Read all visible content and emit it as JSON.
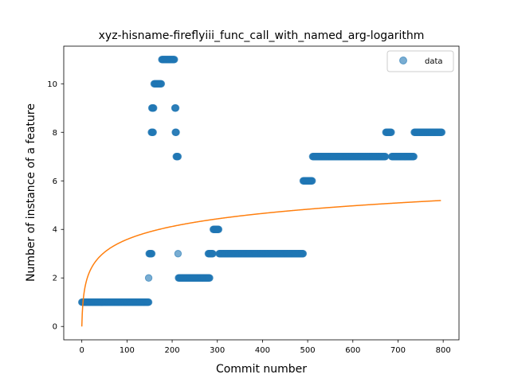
{
  "chart_data": {
    "type": "scatter",
    "title": "xyz-hisname-fireflyiii_func_call_with_named_arg-logarithm",
    "xlabel": "Commit number",
    "ylabel": "Number of instance of a feature",
    "xlim": [
      -40,
      835
    ],
    "ylim": [
      -0.55,
      11.55
    ],
    "xticks": [
      0,
      100,
      200,
      300,
      400,
      500,
      600,
      700,
      800
    ],
    "yticks": [
      0,
      2,
      4,
      6,
      8,
      10
    ],
    "legend": {
      "position": "top-right",
      "entries": [
        "data"
      ]
    },
    "colors": {
      "data": "#1f77b4",
      "fit": "#ff7f0e"
    },
    "series": [
      {
        "name": "data",
        "kind": "scatter",
        "segments": [
          {
            "x_start": 0,
            "x_end": 148,
            "y": 1
          },
          {
            "x_start": 148,
            "x_end": 148,
            "y": 2
          },
          {
            "x_start": 149,
            "x_end": 155,
            "y": 3
          },
          {
            "x_start": 154,
            "x_end": 158,
            "y": 8
          },
          {
            "x_start": 155,
            "x_end": 159,
            "y": 9
          },
          {
            "x_start": 160,
            "x_end": 176,
            "y": 10
          },
          {
            "x_start": 177,
            "x_end": 205,
            "y": 11
          },
          {
            "x_start": 206,
            "x_end": 208,
            "y": 9
          },
          {
            "x_start": 207,
            "x_end": 209,
            "y": 8
          },
          {
            "x_start": 209,
            "x_end": 213,
            "y": 7
          },
          {
            "x_start": 213,
            "x_end": 213,
            "y": 3
          },
          {
            "x_start": 214,
            "x_end": 283,
            "y": 2
          },
          {
            "x_start": 280,
            "x_end": 290,
            "y": 3
          },
          {
            "x_start": 291,
            "x_end": 303,
            "y": 4
          },
          {
            "x_start": 304,
            "x_end": 490,
            "y": 3
          },
          {
            "x_start": 490,
            "x_end": 510,
            "y": 6
          },
          {
            "x_start": 511,
            "x_end": 672,
            "y": 7
          },
          {
            "x_start": 673,
            "x_end": 685,
            "y": 8
          },
          {
            "x_start": 686,
            "x_end": 735,
            "y": 7
          },
          {
            "x_start": 736,
            "x_end": 797,
            "y": 8
          }
        ]
      },
      {
        "kind": "line",
        "model": "logarithm",
        "x_range": [
          0,
          795
        ],
        "coef_a": 0.777,
        "coef_b": 0.473
      }
    ]
  }
}
